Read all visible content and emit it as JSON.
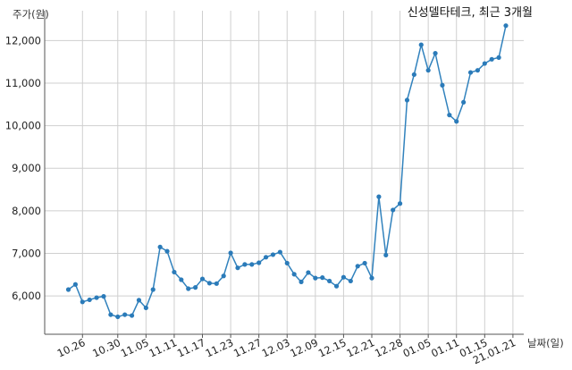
{
  "chart_data": {
    "type": "line",
    "title": "신성델타테크, 최근 3개월",
    "ylabel": "주가(원)",
    "xlabel": "날짜(일)",
    "ylim": [
      5100,
      12700
    ],
    "yticks": [
      6000,
      7000,
      8000,
      9000,
      10000,
      11000,
      12000
    ],
    "ytick_labels": [
      "6,000",
      "7,000",
      "8,000",
      "9,000",
      "10,000",
      "11,000",
      "12,000"
    ],
    "xtick_labels": [
      "10.26",
      "10.30",
      "11.05",
      "11.11",
      "11.17",
      "11.23",
      "11.27",
      "12.03",
      "12.09",
      "12.15",
      "12.21",
      "12.28",
      "01.05",
      "01.11",
      "01.15",
      "21.01.21"
    ],
    "xtick_index": [
      2,
      7,
      11,
      15,
      19,
      23,
      27,
      31,
      35,
      39,
      43,
      47,
      51,
      55,
      59,
      63
    ],
    "grid": true,
    "series": [
      {
        "values": [
          6150,
          6270,
          5860,
          5910,
          5960,
          5990,
          5560,
          5510,
          5560,
          5540,
          5900,
          5720,
          6150,
          7150,
          7050,
          6560,
          6380,
          6170,
          6200,
          6400,
          6300,
          6290,
          6470,
          7010,
          6660,
          6740,
          6740,
          6780,
          6910,
          6970,
          7030,
          6770,
          6510,
          6330,
          6550,
          6420,
          6430,
          6350,
          6230,
          6440,
          6350,
          6700,
          6770,
          6420,
          8330,
          6960,
          8020,
          8170,
          10600,
          11200,
          11900,
          11300,
          11700,
          10950,
          10250,
          10100,
          10550,
          11250,
          11300,
          11460,
          11560,
          11600,
          12350
        ]
      }
    ]
  }
}
